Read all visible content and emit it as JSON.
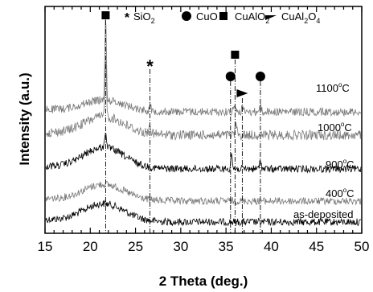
{
  "chart_data": {
    "type": "line",
    "xlabel": "2 Theta (deg.)",
    "ylabel": "Intensity (a.u.)",
    "xlim": [
      15,
      50
    ],
    "x_ticks": [
      "15",
      "20",
      "25",
      "30",
      "35",
      "40",
      "45",
      "50"
    ],
    "y_ticks": "none",
    "grid": false,
    "legend": {
      "placement": "top",
      "entries": [
        {
          "marker": "asterisk",
          "symbol": "*",
          "base": "SiO",
          "sub1": "2",
          "mid": "",
          "sub2": ""
        },
        {
          "marker": "circle",
          "symbol": "",
          "base": "CuO",
          "sub1": "",
          "mid": "",
          "sub2": ""
        },
        {
          "marker": "square",
          "symbol": "",
          "base": "CuAlO",
          "sub1": "2",
          "mid": "",
          "sub2": ""
        },
        {
          "marker": "triangle",
          "symbol": "",
          "base": "CuAl",
          "sub1": "2",
          "mid": "O",
          "sub2": "4"
        }
      ]
    },
    "series": [
      {
        "name": "as-deposited",
        "color": "#000000",
        "offset": 0,
        "hump": 22,
        "noise": 4.5,
        "peaks": []
      },
      {
        "name": "400°C",
        "color": "#7a7a7a",
        "offset": 26,
        "hump": 20,
        "noise": 4.5,
        "peaks": []
      },
      {
        "name": "900°C",
        "color": "#000000",
        "offset": 66,
        "hump": 26,
        "noise": 4.5,
        "peaks": [
          {
            "x": 21.7,
            "h": 22
          },
          {
            "x": 35.6,
            "h": 20
          },
          {
            "x": 38.8,
            "h": 12
          }
        ]
      },
      {
        "name": "1000°C",
        "color": "#7a7a7a",
        "offset": 108,
        "hump": 22,
        "noise": 6,
        "peaks": [
          {
            "x": 21.7,
            "h": 75
          },
          {
            "x": 26.6,
            "h": 14
          },
          {
            "x": 36.1,
            "h": 16
          }
        ]
      },
      {
        "name": "1100°C",
        "color": "#7a7a7a",
        "offset": 137,
        "hump": 14,
        "noise": 5,
        "peaks": [
          {
            "x": 21.7,
            "h": 100
          },
          {
            "x": 26.6,
            "h": 8
          },
          {
            "x": 35.9,
            "h": 12
          },
          {
            "x": 36.8,
            "h": 6
          },
          {
            "x": 38.8,
            "h": 8
          }
        ]
      }
    ],
    "peak_markers": [
      {
        "type": "square",
        "x": 21.7
      },
      {
        "type": "asterisk",
        "symbol": "*",
        "x": 26.6
      },
      {
        "type": "circle",
        "x": 35.5
      },
      {
        "type": "square",
        "x": 36.0
      },
      {
        "type": "triangle",
        "x": 36.8
      },
      {
        "type": "circle",
        "x": 38.8
      }
    ],
    "series_labels": [
      {
        "base": "1100",
        "sup": "o",
        "unit": "C"
      },
      {
        "base": "1000",
        "sup": "o",
        "unit": "C"
      },
      {
        "base": "900",
        "sup": "o",
        "unit": "C"
      },
      {
        "base": "400",
        "sup": "o",
        "unit": "C"
      },
      {
        "base": "as-deposited",
        "sup": "",
        "unit": ""
      }
    ]
  }
}
